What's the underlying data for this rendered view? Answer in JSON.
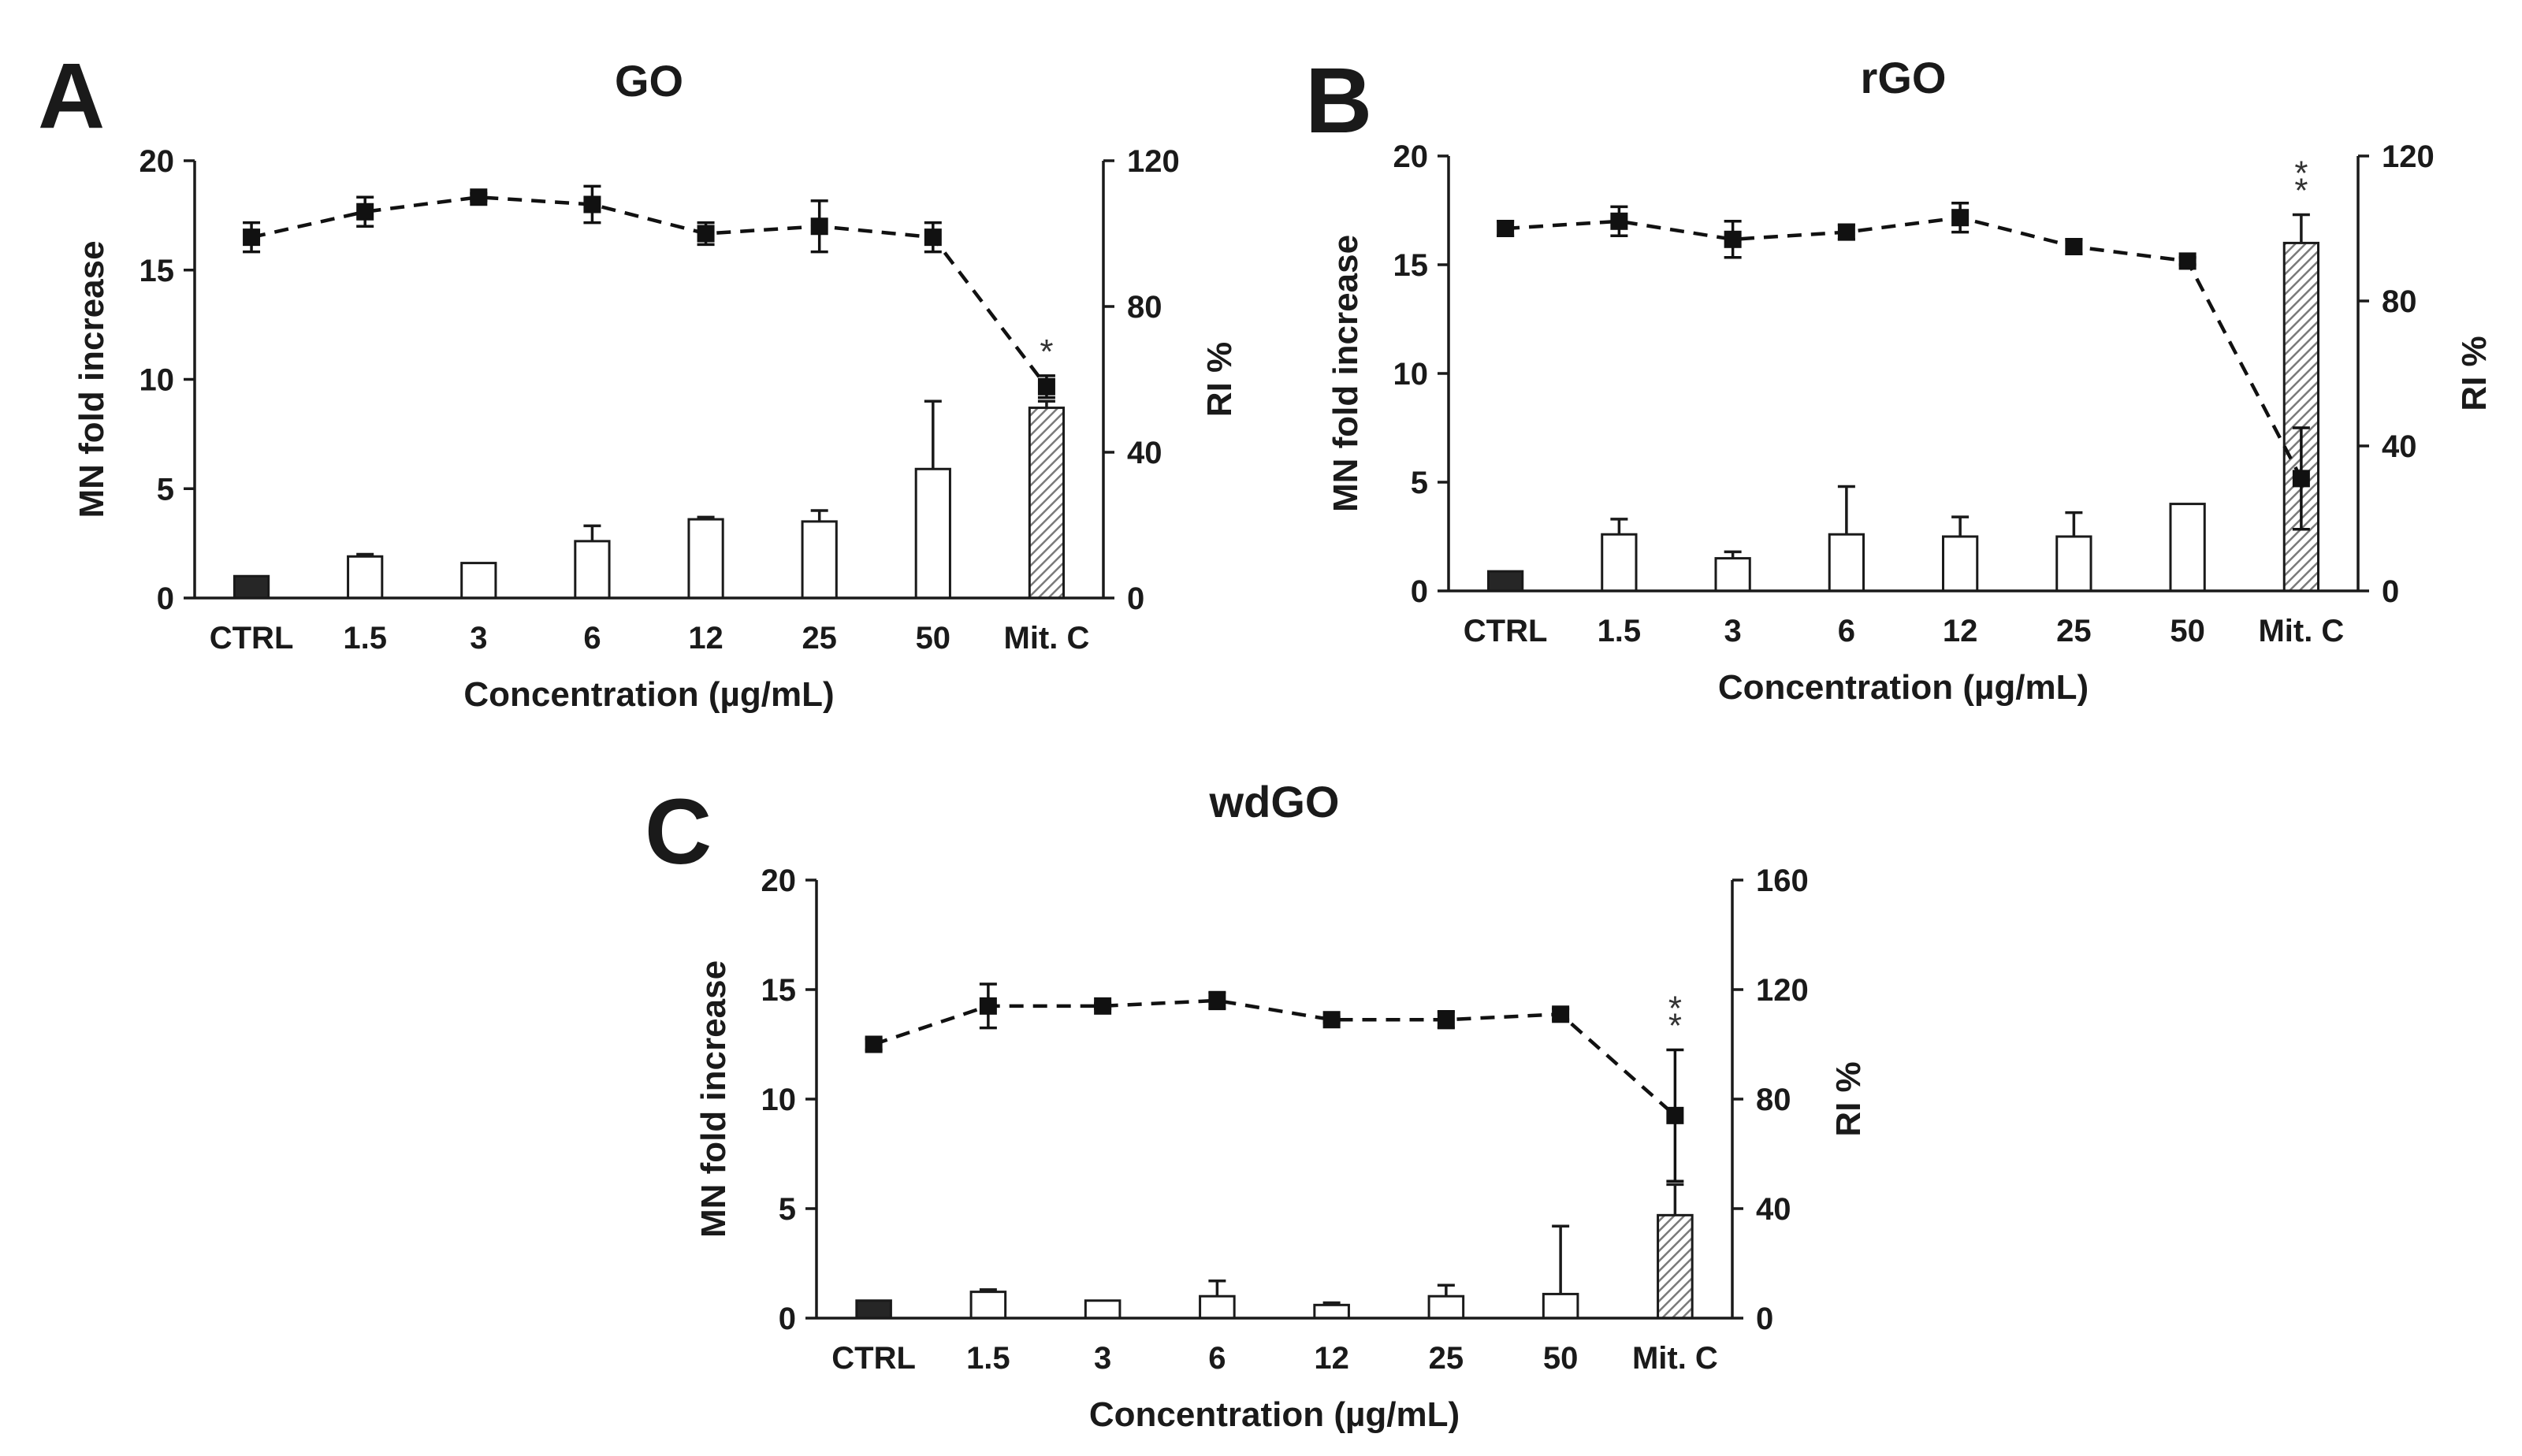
{
  "colors": {
    "ctrl_bar": "#262626",
    "treatment_bar": "#ffffff",
    "mitc_bar_hatch": "#7a7a7a",
    "line": "#111111",
    "axis": "#1a1a1a"
  },
  "chart_data": [
    {
      "panel": "A",
      "type": "bar",
      "title": "GO",
      "xlabel": "Concentration (µg/mL)",
      "ylabel": "MN fold increase",
      "y2label": "RI %",
      "categories": [
        "CTRL",
        "1.5",
        "3",
        "6",
        "12",
        "25",
        "50",
        "Mit. C"
      ],
      "ylim": [
        0,
        20
      ],
      "yticks": [
        0,
        5,
        10,
        15,
        20
      ],
      "y2lim": [
        0,
        120
      ],
      "y2ticks": [
        0,
        40,
        80,
        120
      ],
      "bar_series": {
        "name": "MN fold increase",
        "values": [
          1.0,
          1.9,
          1.6,
          2.6,
          3.6,
          3.5,
          5.9,
          8.7
        ],
        "errors": [
          0,
          0.1,
          0,
          0.7,
          0.1,
          0.5,
          3.1,
          0.3
        ],
        "styles": [
          "filled",
          "open",
          "open",
          "open",
          "open",
          "open",
          "open",
          "hatched"
        ]
      },
      "line_series": {
        "name": "RI %",
        "values": [
          99,
          106,
          110,
          108,
          100,
          102,
          99,
          58
        ],
        "errors": [
          4,
          4,
          1,
          5,
          3,
          7,
          4,
          3
        ]
      },
      "annotations": [
        {
          "category": "Mit. C",
          "text": "*"
        }
      ]
    },
    {
      "panel": "B",
      "type": "bar",
      "title": "rGO",
      "xlabel": "Concentration (µg/mL)",
      "ylabel": "MN fold increase",
      "y2label": "RI %",
      "categories": [
        "CTRL",
        "1.5",
        "3",
        "6",
        "12",
        "25",
        "50",
        "Mit. C"
      ],
      "ylim": [
        0,
        20
      ],
      "yticks": [
        0,
        5,
        10,
        15,
        20
      ],
      "y2lim": [
        0,
        120
      ],
      "y2ticks": [
        0,
        40,
        80,
        120
      ],
      "bar_series": {
        "name": "MN fold increase",
        "values": [
          0.9,
          2.6,
          1.5,
          2.6,
          2.5,
          2.5,
          4.0,
          16.0
        ],
        "errors": [
          0,
          0.7,
          0.3,
          2.2,
          0.9,
          1.1,
          0,
          1.3
        ]
      },
      "line_series": {
        "name": "RI %",
        "values": [
          100,
          102,
          97,
          99,
          103,
          95,
          91,
          31
        ],
        "errors": [
          2,
          4,
          5,
          2,
          4,
          2,
          1,
          14
        ]
      },
      "annotations": [
        {
          "category": "Mit. C",
          "text": "**"
        }
      ]
    },
    {
      "panel": "C",
      "type": "bar",
      "title": "wdGO",
      "xlabel": "Concentration (µg/mL)",
      "ylabel": "MN fold increase",
      "y2label": "RI %",
      "categories": [
        "CTRL",
        "1.5",
        "3",
        "6",
        "12",
        "25",
        "50",
        "Mit. C"
      ],
      "ylim": [
        0,
        20
      ],
      "yticks": [
        0,
        5,
        10,
        15,
        20
      ],
      "y2lim": [
        0,
        160
      ],
      "y2ticks": [
        0,
        40,
        80,
        120,
        160
      ],
      "bar_series": {
        "name": "MN fold increase",
        "values": [
          0.8,
          1.2,
          0.8,
          1.0,
          0.6,
          1.0,
          1.1,
          4.7
        ],
        "errors": [
          0,
          0.1,
          0,
          0.7,
          0.1,
          0.5,
          3.1,
          1.4
        ]
      },
      "line_series": {
        "name": "RI %",
        "values": [
          100,
          114,
          114,
          116,
          109,
          109,
          111,
          74
        ],
        "errors": [
          2,
          8,
          1,
          3,
          1,
          3,
          2,
          24
        ]
      },
      "annotations": [
        {
          "category": "Mit. C",
          "text": "**"
        }
      ]
    }
  ]
}
